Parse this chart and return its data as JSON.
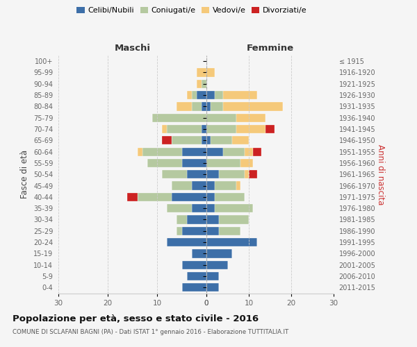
{
  "age_groups": [
    "0-4",
    "5-9",
    "10-14",
    "15-19",
    "20-24",
    "25-29",
    "30-34",
    "35-39",
    "40-44",
    "45-49",
    "50-54",
    "55-59",
    "60-64",
    "65-69",
    "70-74",
    "75-79",
    "80-84",
    "85-89",
    "90-94",
    "95-99",
    "100+"
  ],
  "birth_years": [
    "2011-2015",
    "2006-2010",
    "2001-2005",
    "1996-2000",
    "1991-1995",
    "1986-1990",
    "1981-1985",
    "1976-1980",
    "1971-1975",
    "1966-1970",
    "1961-1965",
    "1956-1960",
    "1951-1955",
    "1946-1950",
    "1941-1945",
    "1936-1940",
    "1931-1935",
    "1926-1930",
    "1921-1925",
    "1916-1920",
    "≤ 1915"
  ],
  "maschi": {
    "celibe": [
      5,
      4,
      5,
      3,
      8,
      5,
      4,
      3,
      7,
      3,
      4,
      5,
      5,
      1,
      1,
      0,
      1,
      2,
      0,
      0,
      0
    ],
    "coniugato": [
      0,
      0,
      0,
      0,
      0,
      1,
      2,
      5,
      7,
      4,
      5,
      7,
      8,
      6,
      7,
      11,
      2,
      1,
      1,
      0,
      0
    ],
    "vedovo": [
      0,
      0,
      0,
      0,
      0,
      0,
      0,
      0,
      0,
      0,
      0,
      0,
      1,
      0,
      1,
      0,
      3,
      1,
      1,
      2,
      0
    ],
    "divorziato": [
      0,
      0,
      0,
      0,
      0,
      0,
      0,
      0,
      2,
      0,
      0,
      0,
      0,
      2,
      0,
      0,
      0,
      0,
      0,
      0,
      0
    ]
  },
  "femmine": {
    "celibe": [
      3,
      3,
      5,
      6,
      12,
      3,
      3,
      2,
      2,
      2,
      3,
      0,
      4,
      1,
      0,
      0,
      1,
      2,
      0,
      0,
      0
    ],
    "coniugata": [
      0,
      0,
      0,
      0,
      0,
      5,
      7,
      9,
      7,
      5,
      6,
      8,
      5,
      5,
      7,
      7,
      3,
      2,
      0,
      0,
      0
    ],
    "vedova": [
      0,
      0,
      0,
      0,
      0,
      0,
      0,
      0,
      0,
      1,
      1,
      3,
      2,
      4,
      7,
      7,
      14,
      8,
      0,
      2,
      0
    ],
    "divorziata": [
      0,
      0,
      0,
      0,
      0,
      0,
      0,
      0,
      0,
      0,
      2,
      0,
      2,
      0,
      2,
      0,
      0,
      0,
      0,
      0,
      0
    ]
  },
  "colors": {
    "celibe": "#3d6fa8",
    "coniugato": "#b5c9a0",
    "vedovo": "#f5c97a",
    "divorziato": "#cc2222"
  },
  "title": "Popolazione per età, sesso e stato civile - 2016",
  "subtitle": "COMUNE DI SCLAFANI BAGNI (PA) - Dati ISTAT 1° gennaio 2016 - Elaborazione TUTTITALIA.IT",
  "xlabel_maschi": "Maschi",
  "xlabel_femmine": "Femmine",
  "ylabel_left": "Fasce di età",
  "ylabel_right": "Anni di nascita",
  "xlim": 30,
  "bg_color": "#f5f5f5",
  "legend_labels": [
    "Celibi/Nubili",
    "Coniugati/e",
    "Vedovi/e",
    "Divorziati/e"
  ]
}
